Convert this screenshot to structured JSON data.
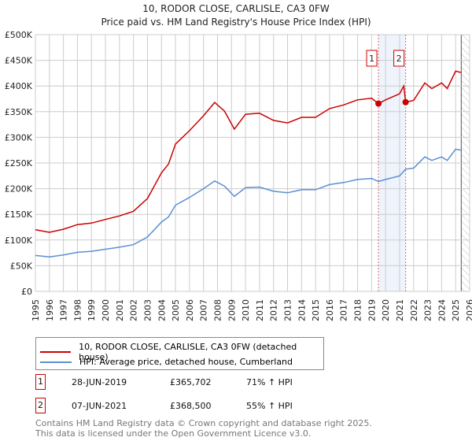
{
  "chart_data": {
    "type": "line",
    "title": "10, RODOR CLOSE, CARLISLE, CA3 0FW",
    "subtitle": "Price paid vs. HM Land Registry's House Price Index (HPI)",
    "xlim": [
      1995,
      2026
    ],
    "ylim": [
      0,
      500000
    ],
    "yticks": [
      "£0",
      "£50K",
      "£100K",
      "£150K",
      "£200K",
      "£250K",
      "£300K",
      "£350K",
      "£400K",
      "£450K",
      "£500K"
    ],
    "xticks": [
      "1995",
      "1996",
      "1997",
      "1998",
      "1999",
      "2000",
      "2001",
      "2002",
      "2003",
      "2004",
      "2005",
      "2006",
      "2007",
      "2008",
      "2009",
      "2010",
      "2011",
      "2012",
      "2013",
      "2014",
      "2015",
      "2016",
      "2017",
      "2018",
      "2019",
      "2020",
      "2021",
      "2022",
      "2023",
      "2024",
      "2025",
      "2026"
    ],
    "grid": true,
    "forecast_hatch_from": 2025.4,
    "highlight_range": [
      2019.49,
      2021.43
    ],
    "series": [
      {
        "name": "10, RODOR CLOSE, CARLISLE, CA3 0FW (detached house)",
        "color": "#cc0000",
        "x": [
          1995,
          1996,
          1997,
          1998,
          1999,
          2000,
          2001,
          2002,
          2003,
          2004,
          2004.5,
          2005,
          2006,
          2007,
          2007.8,
          2008.5,
          2009.2,
          2010,
          2011,
          2012,
          2013,
          2014,
          2015,
          2016,
          2017,
          2018,
          2019,
          2019.49,
          2020,
          2021,
          2021.3,
          2021.43,
          2022,
          2022.8,
          2023.3,
          2024,
          2024.4,
          2025,
          2025.4
        ],
        "y": [
          120000,
          115000,
          121000,
          130000,
          133000,
          140000,
          147000,
          156000,
          181000,
          231000,
          248000,
          287000,
          313000,
          342000,
          368000,
          351000,
          316000,
          345000,
          347000,
          333000,
          328000,
          339000,
          339000,
          356000,
          363000,
          373000,
          376000,
          365702,
          373000,
          385000,
          400000,
          368500,
          372000,
          406000,
          395000,
          406000,
          395000,
          429000,
          426000
        ]
      },
      {
        "name": "HPI: Average price, detached house, Cumberland",
        "color": "#5b8fd4",
        "x": [
          1995,
          1996,
          1997,
          1998,
          1999,
          2000,
          2001,
          2002,
          2003,
          2004,
          2004.5,
          2005,
          2006,
          2007,
          2007.8,
          2008.5,
          2009.2,
          2010,
          2011,
          2012,
          2013,
          2014,
          2015,
          2016,
          2017,
          2018,
          2019,
          2019.49,
          2020,
          2021,
          2021.3,
          2021.43,
          2022,
          2022.8,
          2023.3,
          2024,
          2024.4,
          2025,
          2025.4
        ],
        "y": [
          70000,
          67000,
          71000,
          76000,
          78000,
          82000,
          86000,
          91000,
          106000,
          135000,
          145000,
          168000,
          183000,
          200000,
          215000,
          205000,
          185000,
          202000,
          203000,
          195000,
          192000,
          198000,
          198000,
          208000,
          212000,
          218000,
          220000,
          214000,
          218000,
          225000,
          234000,
          238000,
          240000,
          262000,
          255000,
          262000,
          255000,
          277000,
          275000
        ]
      }
    ],
    "sales": [
      {
        "label": "1",
        "x": 2019.49,
        "date": "28-JUN-2019",
        "price": "£365,702",
        "value": 365702,
        "hpi": "71% ↑ HPI"
      },
      {
        "label": "2",
        "x": 2021.43,
        "date": "07-JUN-2021",
        "price": "£368,500",
        "value": 368500,
        "hpi": "55% ↑ HPI"
      }
    ]
  },
  "footer": {
    "line1": "Contains HM Land Registry data © Crown copyright and database right 2025.",
    "line2": "This data is licensed under the Open Government Licence v3.0."
  }
}
